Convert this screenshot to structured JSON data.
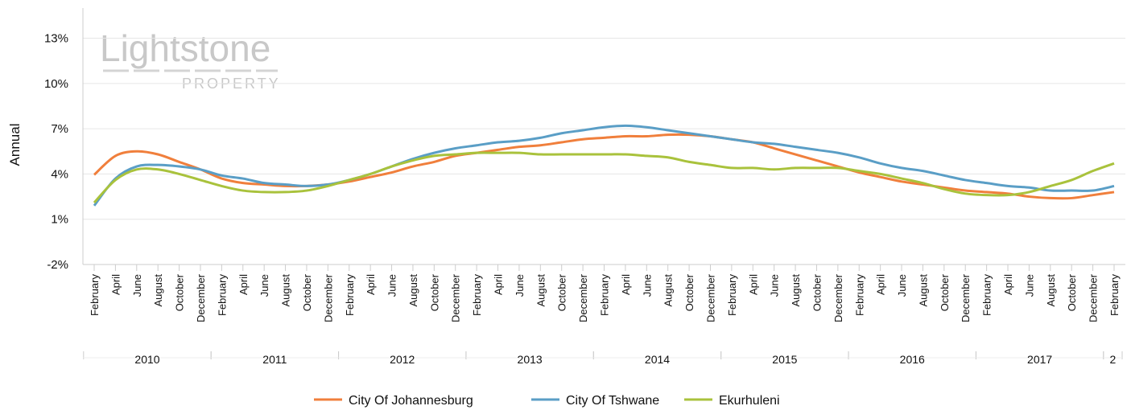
{
  "chart_data": {
    "type": "line",
    "y_label": "Annual",
    "watermark": [
      "Lightstone",
      "PROPERTY"
    ],
    "categories": [
      "February",
      "April",
      "June",
      "August",
      "October",
      "December",
      "February",
      "April",
      "June",
      "August",
      "October",
      "December",
      "February",
      "April",
      "June",
      "August",
      "October",
      "December",
      "February",
      "April",
      "June",
      "August",
      "October",
      "December",
      "February",
      "April",
      "June",
      "August",
      "October",
      "December",
      "February",
      "April",
      "June",
      "August",
      "October",
      "December",
      "February",
      "April",
      "June",
      "August",
      "October",
      "December",
      "February",
      "April",
      "June",
      "August",
      "October",
      "December",
      "February"
    ],
    "year_groups": [
      "2010",
      "2011",
      "2012",
      "2013",
      "2014",
      "2015",
      "2016",
      "2017",
      "2"
    ],
    "series": [
      {
        "name": "City Of Johannesburg",
        "color": "#f07f3c",
        "values": [
          3.95,
          5.2,
          5.5,
          5.3,
          4.8,
          4.3,
          3.7,
          3.4,
          3.3,
          3.2,
          3.2,
          3.3,
          3.5,
          3.8,
          4.1,
          4.5,
          4.8,
          5.2,
          5.4,
          5.6,
          5.8,
          5.9,
          6.1,
          6.3,
          6.4,
          6.5,
          6.5,
          6.6,
          6.6,
          6.5,
          6.3,
          6.1,
          5.7,
          5.3,
          4.9,
          4.5,
          4.1,
          3.8,
          3.5,
          3.3,
          3.1,
          2.9,
          2.8,
          2.7,
          2.5,
          2.4,
          2.4,
          2.6,
          2.8
        ]
      },
      {
        "name": "City Of Tshwane",
        "color": "#5a9ec6",
        "values": [
          1.9,
          3.7,
          4.5,
          4.6,
          4.5,
          4.3,
          3.9,
          3.7,
          3.4,
          3.3,
          3.2,
          3.3,
          3.6,
          4.0,
          4.5,
          5.0,
          5.4,
          5.7,
          5.9,
          6.1,
          6.2,
          6.4,
          6.7,
          6.9,
          7.1,
          7.2,
          7.1,
          6.9,
          6.7,
          6.5,
          6.3,
          6.1,
          6.0,
          5.8,
          5.6,
          5.4,
          5.1,
          4.7,
          4.4,
          4.2,
          3.9,
          3.6,
          3.4,
          3.2,
          3.1,
          2.9,
          2.9,
          2.9,
          3.2
        ]
      },
      {
        "name": "Ekurhuleni",
        "color": "#a9c23c",
        "values": [
          2.1,
          3.6,
          4.3,
          4.3,
          4.0,
          3.6,
          3.2,
          2.9,
          2.8,
          2.8,
          2.9,
          3.2,
          3.6,
          4.0,
          4.5,
          4.9,
          5.2,
          5.3,
          5.4,
          5.4,
          5.4,
          5.3,
          5.3,
          5.3,
          5.3,
          5.3,
          5.2,
          5.1,
          4.8,
          4.6,
          4.4,
          4.4,
          4.3,
          4.4,
          4.4,
          4.4,
          4.2,
          4.0,
          3.7,
          3.4,
          3.0,
          2.7,
          2.6,
          2.6,
          2.8,
          3.2,
          3.6,
          4.2,
          4.7
        ]
      }
    ],
    "ylim": [
      -2,
      15
    ],
    "yticks": [
      {
        "value": -2,
        "label": "-2%"
      },
      {
        "value": 1,
        "label": "1%"
      },
      {
        "value": 4,
        "label": "4%"
      },
      {
        "value": 7,
        "label": "7%"
      },
      {
        "value": 10,
        "label": "10%"
      },
      {
        "value": 13,
        "label": "13%"
      }
    ],
    "grid": true
  }
}
